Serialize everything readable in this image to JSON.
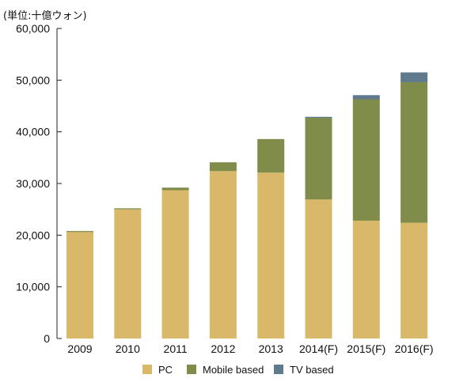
{
  "chart_data": {
    "type": "bar",
    "stacked": true,
    "unit_label": "(単位:十億ウォン)",
    "categories": [
      "2009",
      "2010",
      "2011",
      "2012",
      "2013",
      "2014(F)",
      "2015(F)",
      "2016(F)"
    ],
    "series": [
      {
        "name": "PC",
        "color": "#d9b86a",
        "values": [
          20600,
          25000,
          28700,
          32400,
          32100,
          26900,
          22800,
          22400
        ]
      },
      {
        "name": "Mobile based",
        "color": "#7f8c4a",
        "values": [
          200,
          200,
          500,
          1700,
          6500,
          15800,
          23500,
          27200
        ]
      },
      {
        "name": "TV based",
        "color": "#5f7a8c",
        "values": [
          0,
          0,
          0,
          0,
          0,
          200,
          800,
          1900
        ]
      }
    ],
    "ylim": [
      0,
      60000
    ],
    "yticks": [
      "0",
      "10,000",
      "20,000",
      "30,000",
      "40,000",
      "50,000",
      "60,000"
    ],
    "ytick_values": [
      0,
      10000,
      20000,
      30000,
      40000,
      50000,
      60000
    ],
    "grid": false,
    "legend_position": "bottom"
  }
}
